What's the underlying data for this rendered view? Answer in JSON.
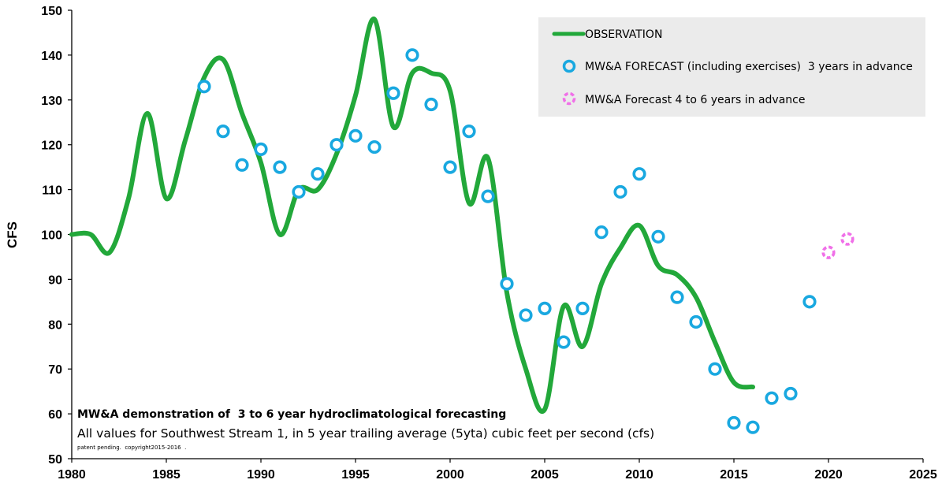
{
  "chart_data": {
    "type": "line",
    "title": "",
    "xlabel": "",
    "ylabel": "CFS",
    "xlim": [
      1980,
      2025
    ],
    "ylim": [
      50,
      150
    ],
    "x_ticks": [
      1980,
      1985,
      1990,
      1995,
      2000,
      2005,
      2010,
      2015,
      2020,
      2025
    ],
    "y_ticks": [
      50,
      60,
      70,
      80,
      90,
      100,
      110,
      120,
      130,
      140,
      150
    ],
    "grid": false,
    "legend_position": "top-right",
    "colors": {
      "observation": "#22a83a",
      "forecast": "#19a8e0",
      "forecast_long": "#f070e8"
    },
    "series": [
      {
        "name": "OBSERVATION",
        "kind": "line",
        "x": [
          1980,
          1981,
          1982,
          1983,
          1984,
          1985,
          1986,
          1987,
          1988,
          1989,
          1990,
          1991,
          1992,
          1993,
          1994,
          1995,
          1996,
          1997,
          1998,
          1999,
          2000,
          2001,
          2002,
          2003,
          2004,
          2005,
          2006,
          2007,
          2008,
          2009,
          2010,
          2011,
          2012,
          2013,
          2014,
          2015,
          2016
        ],
        "y": [
          100,
          100,
          96,
          108,
          127,
          108,
          121,
          135,
          139,
          127,
          116,
          100,
          110,
          110,
          118,
          131,
          148,
          124,
          136,
          136,
          132,
          107,
          117,
          87,
          70,
          61,
          84,
          75,
          89,
          97,
          102,
          93,
          91,
          86,
          76,
          67,
          66
        ]
      },
      {
        "name": "MW&A FORECAST (including exercises)  3 years in advance",
        "kind": "marker",
        "x": [
          1987,
          1988,
          1989,
          1990,
          1991,
          1992,
          1993,
          1994,
          1995,
          1996,
          1997,
          1998,
          1999,
          2000,
          2001,
          2002,
          2003,
          2004,
          2005,
          2006,
          2007,
          2008,
          2009,
          2010,
          2011,
          2012,
          2013,
          2014,
          2015,
          2016,
          2017,
          2018,
          2019
        ],
        "y": [
          133,
          123,
          115.5,
          119,
          115,
          109.5,
          113.5,
          120,
          122,
          119.5,
          131.5,
          140,
          129,
          115,
          123,
          108.5,
          89,
          82,
          83.5,
          76,
          83.5,
          100.5,
          109.5,
          113.5,
          99.5,
          86,
          80.5,
          70,
          58,
          57,
          63.5,
          64.5,
          85
        ]
      },
      {
        "name": "MW&A Forecast 4 to 6 years in advance",
        "kind": "marker",
        "x": [
          2020,
          2021
        ],
        "y": [
          96,
          99
        ]
      }
    ],
    "annotations": {
      "line1": "MW&A demonstration of  3 to 6 year hydroclimatological forecasting",
      "line2": "All values for Southwest Stream 1, in 5 year trailing average (5yta) cubic feet per second (cfs)",
      "line3": "patent pending.  copyright2015-2016  ."
    }
  }
}
